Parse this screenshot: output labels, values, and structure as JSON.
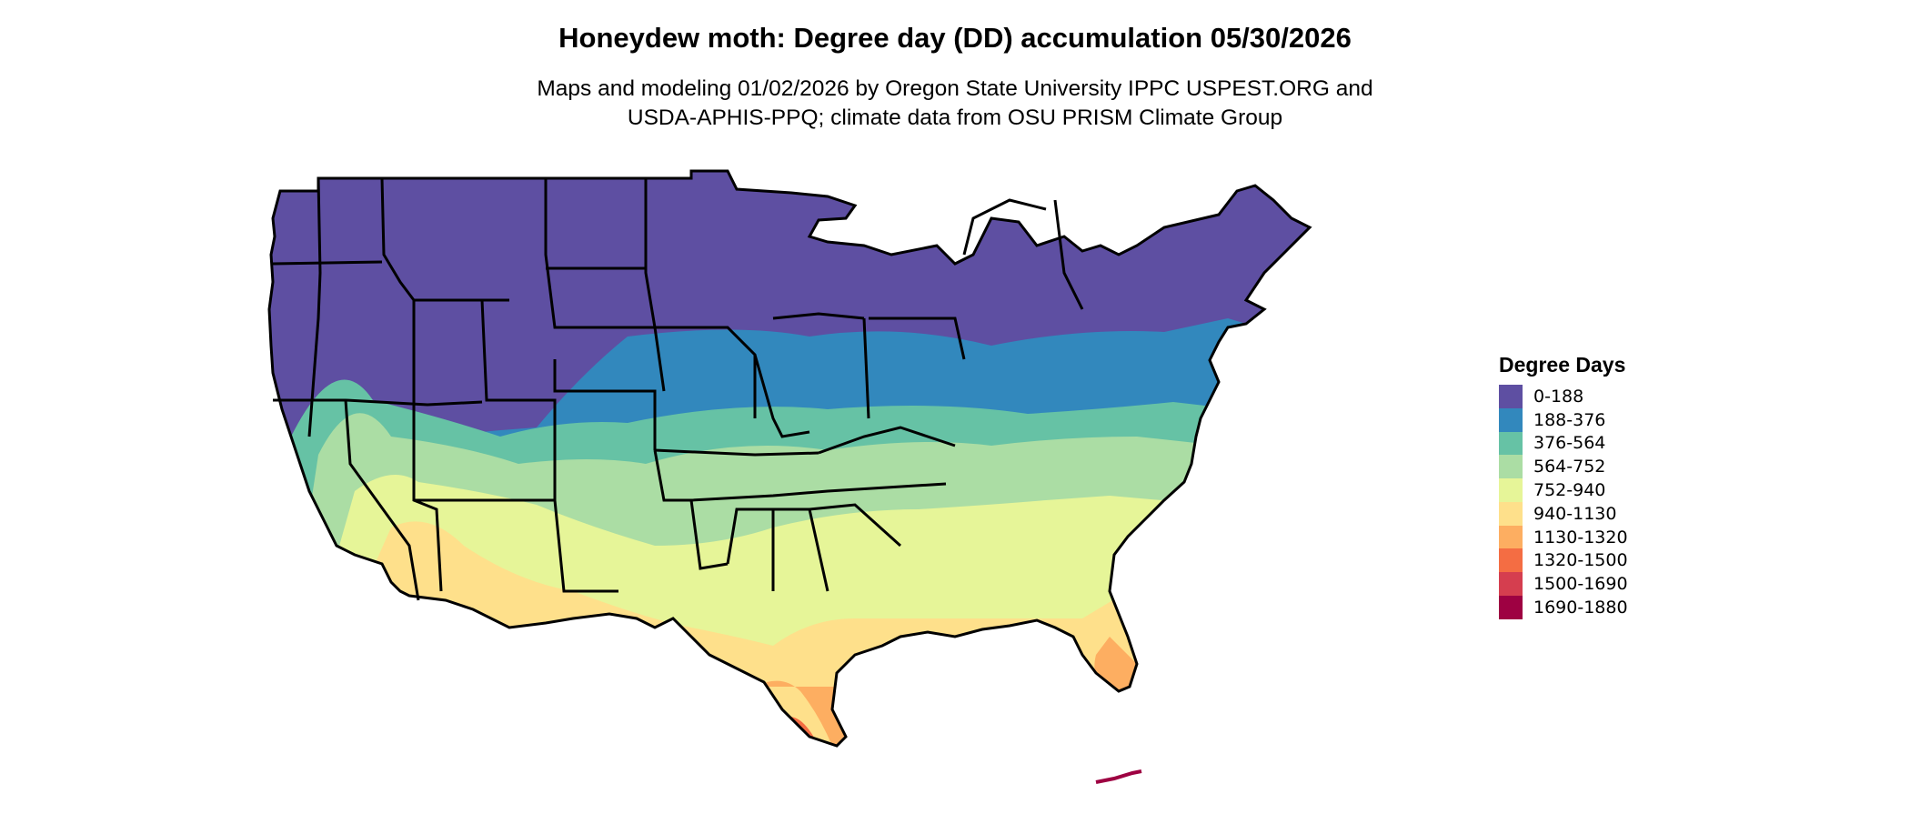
{
  "map": {
    "title": "Honeydew moth: Degree day (DD) accumulation 05/30/2026",
    "subtitle_line1": "Maps and modeling 01/02/2026 by Oregon State University IPPC USPEST.ORG and",
    "subtitle_line2": "USDA-APHIS-PPQ; climate data from OSU PRISM Climate Group",
    "region": "Contiguous United States"
  },
  "legend": {
    "title": "Degree Days",
    "items": [
      {
        "label": "0-188",
        "color": "#5e4fa2"
      },
      {
        "label": "188-376",
        "color": "#3288bd"
      },
      {
        "label": "376-564",
        "color": "#66c2a5"
      },
      {
        "label": "564-752",
        "color": "#abdda4"
      },
      {
        "label": "752-940",
        "color": "#e6f598"
      },
      {
        "label": "940-1130",
        "color": "#fee08b"
      },
      {
        "label": "1130-1320",
        "color": "#fdae61"
      },
      {
        "label": "1320-1500",
        "color": "#f46d43"
      },
      {
        "label": "1500-1690",
        "color": "#d53e4f"
      },
      {
        "label": "1690-1880",
        "color": "#9e0142"
      }
    ]
  }
}
